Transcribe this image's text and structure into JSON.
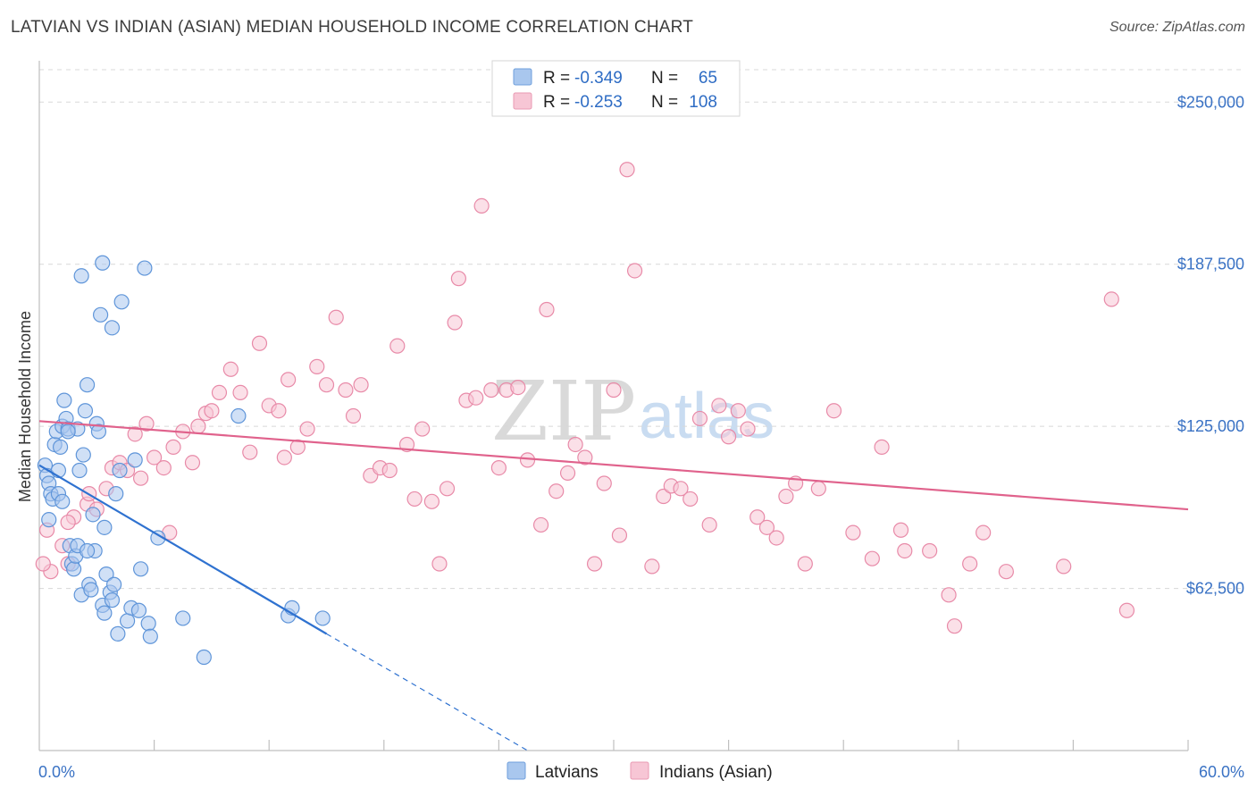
{
  "header": {
    "title": "LATVIAN VS INDIAN (ASIAN) MEDIAN HOUSEHOLD INCOME CORRELATION CHART",
    "source": "Source: ZipAtlas.com"
  },
  "watermark": {
    "part1": "ZIP",
    "part2": "atlas"
  },
  "legend": {
    "rows": [
      {
        "r_label": "R =",
        "r_value": "-0.349",
        "n_label": "N =",
        "n_value": "65",
        "color": "#7eaae0"
      },
      {
        "r_label": "R =",
        "r_value": "-0.253",
        "n_label": "N =",
        "n_value": "108",
        "color": "#f0a3bb"
      }
    ]
  },
  "bottom_legend": [
    {
      "label": "Latvians",
      "color": "#7eaae0"
    },
    {
      "label": "Indians (Asian)",
      "color": "#f0a3bb"
    }
  ],
  "colors": {
    "latvian_fill": "#a9c7ee",
    "latvian_stroke": "#5f95d9",
    "latvian_line": "#2f72d0",
    "indian_fill": "#f7c6d5",
    "indian_stroke": "#e88aa8",
    "indian_line": "#e0628c",
    "grid": "#d8d8d8",
    "axis_text": "#3a72c4"
  },
  "chart_data": {
    "type": "scatter",
    "title": "LATVIAN VS INDIAN (ASIAN) MEDIAN HOUSEHOLD INCOME CORRELATION CHART",
    "xlabel": "",
    "ylabel": "Median Household Income",
    "xlim": [
      0,
      60
    ],
    "ylim": [
      0,
      262500
    ],
    "x_tick_labels": {
      "min": "0.0%",
      "max": "60.0%"
    },
    "yticks": [
      {
        "value": 62500,
        "label": "$62,500"
      },
      {
        "value": 125000,
        "label": "$125,000"
      },
      {
        "value": 187500,
        "label": "$187,500"
      },
      {
        "value": 250000,
        "label": "$250,000"
      }
    ],
    "grid": "horizontal dashed",
    "series": [
      {
        "name": "Latvians",
        "r": -0.349,
        "n": 65,
        "trend": {
          "x0": 0,
          "y0": 110000,
          "x1": 15,
          "y1": 45000,
          "dash_to_x": 25.5
        },
        "points": [
          [
            0.3,
            110000
          ],
          [
            0.4,
            106000
          ],
          [
            0.5,
            103000
          ],
          [
            0.6,
            99000
          ],
          [
            0.7,
            97000
          ],
          [
            0.8,
            118000
          ],
          [
            0.9,
            123000
          ],
          [
            1.0,
            108000
          ],
          [
            1.1,
            117000
          ],
          [
            1.2,
            125000
          ],
          [
            1.3,
            135000
          ],
          [
            1.4,
            128000
          ],
          [
            1.5,
            124000
          ],
          [
            1.6,
            79000
          ],
          [
            1.7,
            72000
          ],
          [
            1.8,
            70000
          ],
          [
            1.9,
            75000
          ],
          [
            2.0,
            124000
          ],
          [
            2.1,
            108000
          ],
          [
            2.2,
            183000
          ],
          [
            2.3,
            114000
          ],
          [
            2.4,
            131000
          ],
          [
            2.5,
            141000
          ],
          [
            2.2,
            60000
          ],
          [
            2.6,
            64000
          ],
          [
            2.7,
            62000
          ],
          [
            2.8,
            91000
          ],
          [
            2.9,
            77000
          ],
          [
            3.0,
            126000
          ],
          [
            3.1,
            123000
          ],
          [
            3.2,
            168000
          ],
          [
            3.3,
            188000
          ],
          [
            3.4,
            86000
          ],
          [
            3.5,
            68000
          ],
          [
            3.3,
            56000
          ],
          [
            3.4,
            53000
          ],
          [
            3.7,
            61000
          ],
          [
            3.8,
            58000
          ],
          [
            3.9,
            64000
          ],
          [
            4.0,
            99000
          ],
          [
            4.1,
            45000
          ],
          [
            4.2,
            108000
          ],
          [
            4.3,
            173000
          ],
          [
            4.6,
            50000
          ],
          [
            4.8,
            55000
          ],
          [
            5.0,
            112000
          ],
          [
            5.2,
            54000
          ],
          [
            5.3,
            70000
          ],
          [
            5.5,
            186000
          ],
          [
            5.7,
            49000
          ],
          [
            5.8,
            44000
          ],
          [
            6.2,
            82000
          ],
          [
            7.5,
            51000
          ],
          [
            8.6,
            36000
          ],
          [
            10.4,
            129000
          ],
          [
            13.0,
            52000
          ],
          [
            13.2,
            55000
          ],
          [
            14.8,
            51000
          ],
          [
            1.0,
            99000
          ],
          [
            1.5,
            123000
          ],
          [
            2.0,
            79000
          ],
          [
            3.8,
            163000
          ],
          [
            0.5,
            89000
          ],
          [
            1.2,
            96000
          ],
          [
            2.5,
            77000
          ]
        ]
      },
      {
        "name": "Indians (Asian)",
        "r": -0.253,
        "n": 108,
        "trend": {
          "x0": 0,
          "y0": 127000,
          "x1": 60,
          "y1": 93000
        },
        "points": [
          [
            0.4,
            85000
          ],
          [
            0.6,
            69000
          ],
          [
            1.2,
            79000
          ],
          [
            1.5,
            72000
          ],
          [
            1.8,
            90000
          ],
          [
            2.5,
            95000
          ],
          [
            2.6,
            99000
          ],
          [
            3.0,
            93000
          ],
          [
            3.5,
            101000
          ],
          [
            3.8,
            109000
          ],
          [
            4.2,
            111000
          ],
          [
            4.6,
            108000
          ],
          [
            5.0,
            122000
          ],
          [
            5.3,
            105000
          ],
          [
            5.6,
            126000
          ],
          [
            6.0,
            113000
          ],
          [
            6.5,
            109000
          ],
          [
            6.8,
            84000
          ],
          [
            7.0,
            117000
          ],
          [
            7.5,
            123000
          ],
          [
            8.0,
            111000
          ],
          [
            8.3,
            125000
          ],
          [
            8.7,
            130000
          ],
          [
            9.0,
            131000
          ],
          [
            9.4,
            138000
          ],
          [
            10.0,
            147000
          ],
          [
            10.5,
            138000
          ],
          [
            11.0,
            115000
          ],
          [
            11.5,
            157000
          ],
          [
            12.0,
            133000
          ],
          [
            12.5,
            131000
          ],
          [
            12.8,
            113000
          ],
          [
            13.0,
            143000
          ],
          [
            13.5,
            117000
          ],
          [
            14.0,
            124000
          ],
          [
            14.5,
            148000
          ],
          [
            15.0,
            141000
          ],
          [
            15.5,
            167000
          ],
          [
            16.0,
            139000
          ],
          [
            16.4,
            129000
          ],
          [
            16.8,
            141000
          ],
          [
            17.3,
            106000
          ],
          [
            17.8,
            109000
          ],
          [
            18.3,
            108000
          ],
          [
            18.7,
            156000
          ],
          [
            19.2,
            118000
          ],
          [
            19.6,
            97000
          ],
          [
            20.0,
            124000
          ],
          [
            20.5,
            96000
          ],
          [
            20.9,
            72000
          ],
          [
            21.3,
            101000
          ],
          [
            21.7,
            165000
          ],
          [
            21.9,
            182000
          ],
          [
            22.3,
            135000
          ],
          [
            22.8,
            136000
          ],
          [
            23.1,
            210000
          ],
          [
            23.6,
            139000
          ],
          [
            24.0,
            109000
          ],
          [
            24.4,
            139000
          ],
          [
            25.0,
            140000
          ],
          [
            25.5,
            112000
          ],
          [
            26.2,
            87000
          ],
          [
            26.5,
            170000
          ],
          [
            27.0,
            100000
          ],
          [
            27.6,
            107000
          ],
          [
            28.0,
            118000
          ],
          [
            28.5,
            113000
          ],
          [
            29.0,
            72000
          ],
          [
            29.5,
            103000
          ],
          [
            30.0,
            139000
          ],
          [
            30.3,
            83000
          ],
          [
            30.7,
            224000
          ],
          [
            31.1,
            185000
          ],
          [
            32.0,
            71000
          ],
          [
            32.6,
            98000
          ],
          [
            33.0,
            102000
          ],
          [
            33.5,
            101000
          ],
          [
            34.0,
            97000
          ],
          [
            34.5,
            128000
          ],
          [
            35.0,
            87000
          ],
          [
            35.5,
            133000
          ],
          [
            36.0,
            121000
          ],
          [
            36.5,
            131000
          ],
          [
            37.0,
            124000
          ],
          [
            37.5,
            90000
          ],
          [
            38.0,
            86000
          ],
          [
            38.5,
            82000
          ],
          [
            39.0,
            98000
          ],
          [
            39.5,
            103000
          ],
          [
            40.0,
            72000
          ],
          [
            40.7,
            101000
          ],
          [
            41.5,
            131000
          ],
          [
            42.5,
            84000
          ],
          [
            43.5,
            74000
          ],
          [
            44.0,
            117000
          ],
          [
            45.0,
            85000
          ],
          [
            45.2,
            77000
          ],
          [
            46.5,
            77000
          ],
          [
            47.5,
            60000
          ],
          [
            47.8,
            48000
          ],
          [
            48.6,
            72000
          ],
          [
            49.3,
            84000
          ],
          [
            50.5,
            69000
          ],
          [
            53.5,
            71000
          ],
          [
            56.0,
            174000
          ],
          [
            56.8,
            54000
          ],
          [
            0.2,
            72000
          ],
          [
            1.5,
            88000
          ]
        ]
      }
    ]
  }
}
